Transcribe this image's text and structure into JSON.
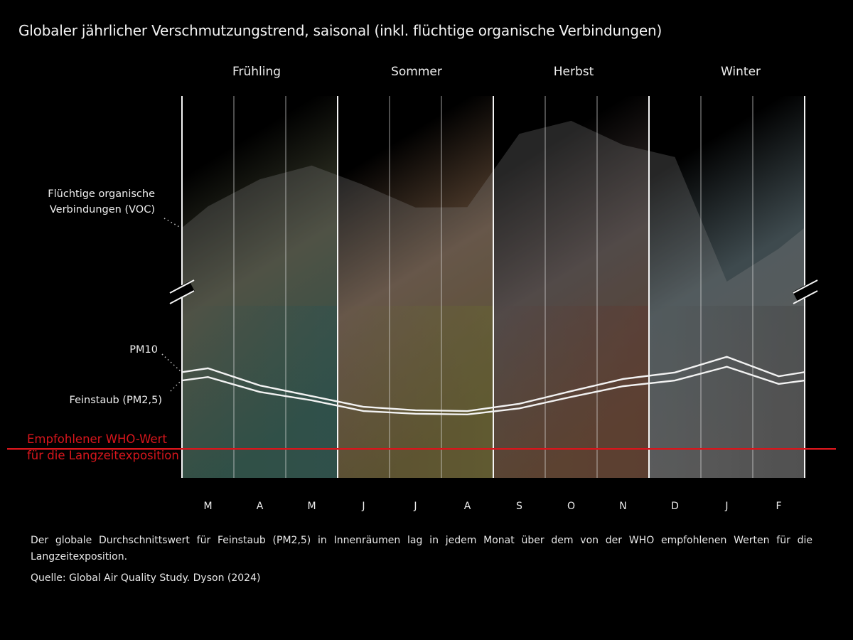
{
  "title": "Globaler jährlicher Verschmutzungstrend, saisonal (inkl. flüchtige organische Verbindungen)",
  "seasons": [
    {
      "label": "Frühling",
      "color_top": "#3a3d2c",
      "color_bottom": "#0f3a2c",
      "accent": "#0b3d3a"
    },
    {
      "label": "Sommer",
      "color_top": "#5a4432",
      "color_bottom": "#4a3a10",
      "accent": "#5a5a10"
    },
    {
      "label": "Herbst",
      "color_top": "#3d3230",
      "color_bottom": "#4a2a10",
      "accent": "#4e1a10"
    },
    {
      "label": "Winter",
      "color_top": "#3e4a4e",
      "color_bottom": "#4a4a4a",
      "accent": "#2a2a2a"
    }
  ],
  "labels": {
    "voc_line1": "Flüchtige organische",
    "voc_line2": "Verbindungen (VOC)",
    "pm10": "PM10",
    "pm25": "Feinstaub (PM2,5)",
    "who_line1": "Empfohlener WHO-Wert",
    "who_line2": "für die Langzeitexposition"
  },
  "note": "Der globale Durchschnittswert für Feinstaub (PM2,5) in Innenräumen lag in jedem Monat über dem von der WHO empfohlenen Werten für die Langzeitexposition.",
  "source": "Quelle:  Global Air Quality Study. Dyson (2024)",
  "colors": {
    "who_line": "#d8161c",
    "lines": "#f2f2f2",
    "voc_fill": "#8a8a8a"
  },
  "chart_data": {
    "type": "area",
    "title": "Globaler jährlicher Verschmutzungstrend, saisonal (inkl. flüchtige organische Verbindungen)",
    "xlabel": "",
    "ylabel": "",
    "y_units": "relative index (no numeric axis shown; 0 = chart bottom, 100 = chart top)",
    "ylim": [
      0,
      100
    ],
    "y_axis_break": true,
    "grid": "vertical month lines",
    "categories": [
      "M",
      "A",
      "M",
      "J",
      "J",
      "A",
      "S",
      "O",
      "N",
      "D",
      "J",
      "F"
    ],
    "season_groups": [
      {
        "label": "Frühling",
        "months": [
          "M",
          "A",
          "M"
        ]
      },
      {
        "label": "Sommer",
        "months": [
          "J",
          "J",
          "A"
        ]
      },
      {
        "label": "Herbst",
        "months": [
          "S",
          "O",
          "N"
        ]
      },
      {
        "label": "Winter",
        "months": [
          "D",
          "J",
          "F"
        ]
      }
    ],
    "edge_values_note": "start/end values are the series value at the left and right plot edges",
    "series": [
      {
        "name": "Flüchtige organische Verbindungen (VOC)",
        "type": "area",
        "start": 65.5,
        "values": [
          71.1,
          78.2,
          81.8,
          76.7,
          70.8,
          70.9,
          90.1,
          93.5,
          87.2,
          84.0,
          51.4,
          60.0
        ],
        "end": 65.5
      },
      {
        "name": "PM10",
        "type": "line",
        "start": 27.7,
        "values": [
          28.7,
          24.2,
          21.4,
          18.6,
          17.7,
          17.5,
          19.4,
          22.7,
          25.9,
          27.6,
          31.7,
          26.6
        ],
        "end": 27.7
      },
      {
        "name": "Feinstaub (PM2,5)",
        "type": "line",
        "start": 25.5,
        "values": [
          26.4,
          22.5,
          20.3,
          17.5,
          16.8,
          16.6,
          18.2,
          21.2,
          24.0,
          25.5,
          29.1,
          24.6
        ],
        "end": 25.5
      }
    ],
    "reference_lines": [
      {
        "name": "Empfohlener WHO-Wert für die Langzeitexposition",
        "value": 7.6,
        "color": "#d8161c"
      }
    ],
    "legend": "inline labels left of chart"
  }
}
